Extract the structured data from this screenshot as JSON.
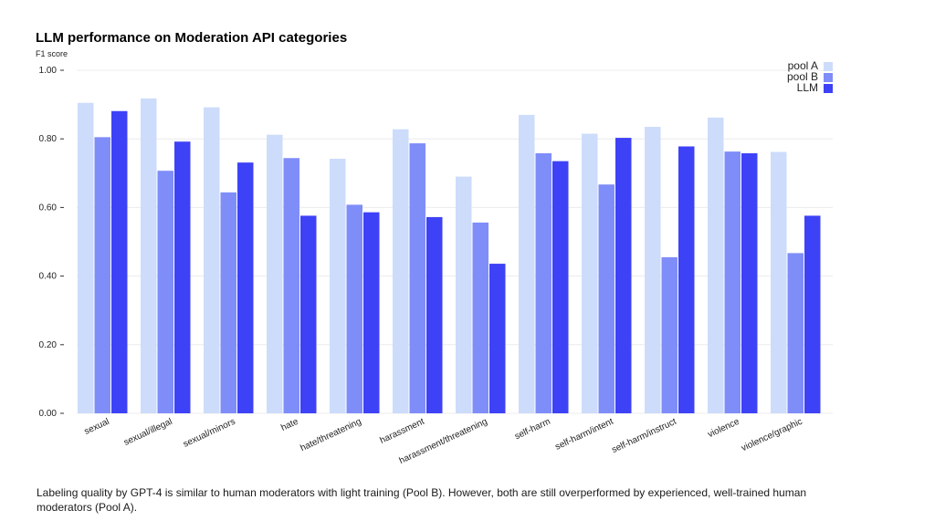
{
  "chart_data": {
    "type": "bar",
    "title": "LLM performance on Moderation API categories",
    "ylabel": "F1 score",
    "xlabel": "",
    "ylim": [
      0,
      1
    ],
    "yticks": [
      "0.00",
      "0.20",
      "0.40",
      "0.60",
      "0.80",
      "1.00"
    ],
    "legend_position": "top-right",
    "categories": [
      "sexual",
      "sexual/illegal",
      "sexual/minors",
      "hate",
      "hate/threatening",
      "harassment",
      "harassment/threatening",
      "self-harm",
      "self-harm/intent",
      "self-harm/instruct",
      "violence",
      "violence/graphic"
    ],
    "series": [
      {
        "name": "pool A",
        "color": "#cddcfb",
        "values": [
          0.905,
          0.918,
          0.892,
          0.812,
          0.742,
          0.828,
          0.69,
          0.87,
          0.815,
          0.835,
          0.862,
          0.762
        ]
      },
      {
        "name": "pool B",
        "color": "#7f8df9",
        "values": [
          0.805,
          0.707,
          0.644,
          0.744,
          0.608,
          0.787,
          0.556,
          0.758,
          0.667,
          0.455,
          0.763,
          0.467
        ]
      },
      {
        "name": "LLM",
        "color": "#3e42f6",
        "values": [
          0.881,
          0.792,
          0.731,
          0.576,
          0.586,
          0.572,
          0.436,
          0.735,
          0.803,
          0.778,
          0.758,
          0.576
        ]
      }
    ]
  },
  "caption": "Labeling quality by GPT-4 is similar to human moderators with light training (Pool B). However, both are still overperformed by experienced, well-trained human moderators (Pool A)."
}
